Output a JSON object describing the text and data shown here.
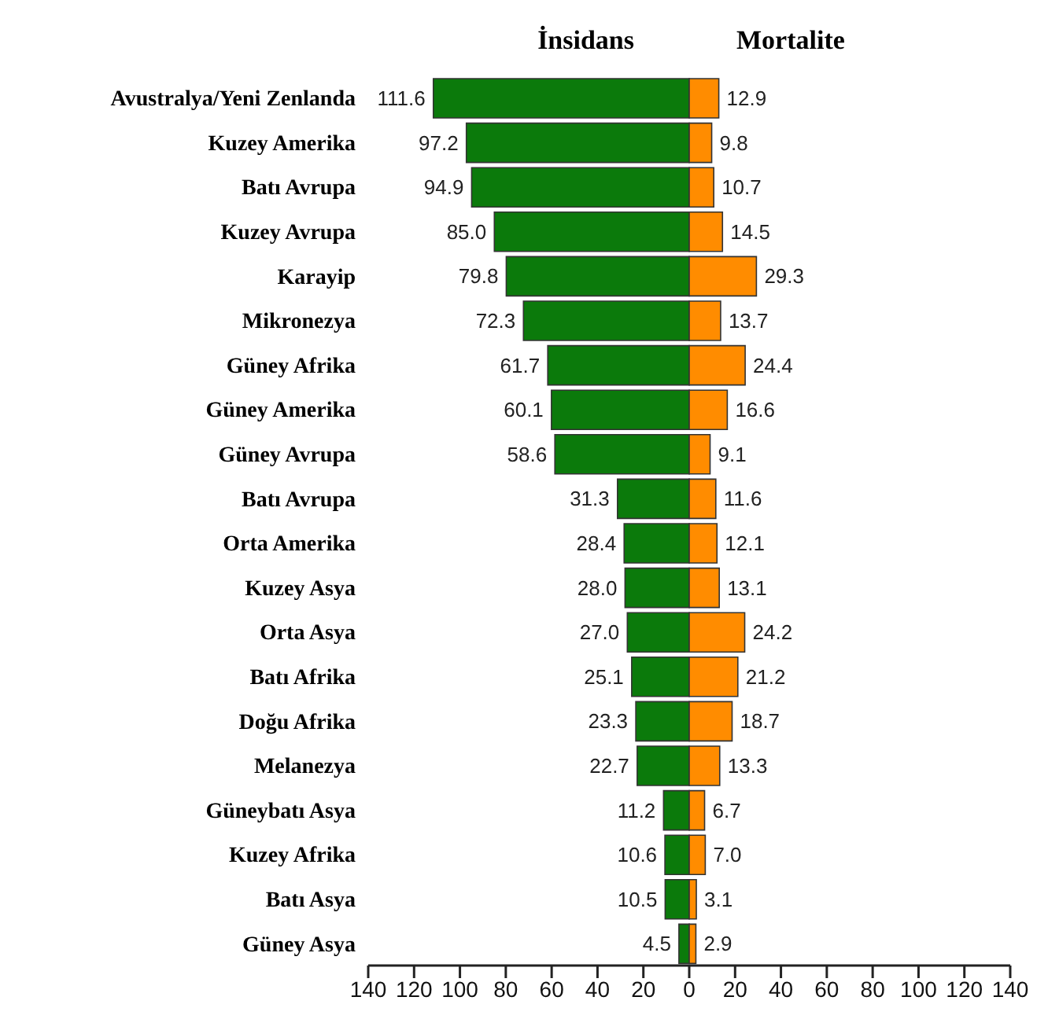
{
  "chart_data": {
    "type": "bar",
    "orientation": "horizontal",
    "stacked": true,
    "categories": [
      "Avustralya/Yeni Zenlanda",
      "Kuzey Amerika",
      "Batı Avrupa",
      "Kuzey Avrupa",
      "Karayip",
      "Mikronezya",
      "Güney Afrika",
      "Güney Amerika",
      "Güney Avrupa",
      "Batı Avrupa",
      "Orta Amerika",
      "Kuzey Asya",
      "Orta Asya",
      "Batı Afrika",
      "Doğu Afrika",
      "Melanezya",
      "Güneybatı Asya",
      "Kuzey Afrika",
      "Batı Asya",
      "Güney Asya"
    ],
    "series": [
      {
        "name": "İnsidans",
        "color": "#0b7a0b",
        "values": [
          111.6,
          97.2,
          94.9,
          85.0,
          79.8,
          72.3,
          61.7,
          60.1,
          58.6,
          31.3,
          28.4,
          28.0,
          27.0,
          25.1,
          23.3,
          22.7,
          11.2,
          10.6,
          10.5,
          4.5
        ],
        "base": [
          -111.6,
          -97.2,
          -94.9,
          -85.0,
          -79.8,
          -72.3,
          -61.7,
          -60.1,
          -58.6,
          -31.3,
          -28.4,
          -28.0,
          -27.0,
          -25.1,
          -23.3,
          -22.7,
          -11.2,
          -10.6,
          -10.5,
          -4.5
        ],
        "value_labels": [
          "111.6",
          "97.2",
          "94.9",
          "85.0",
          "79.8",
          "72.3",
          "61.7",
          "60.1",
          "58.6",
          "31.3",
          "28.4",
          "28.0",
          "27.0",
          "25.1",
          "23.3",
          "22.7",
          "11.2",
          "10.6",
          "10.5",
          "4.5"
        ]
      },
      {
        "name": "Mortalite",
        "color": "#ff8c00",
        "values": [
          12.9,
          9.8,
          10.7,
          14.5,
          29.3,
          13.7,
          24.4,
          16.6,
          9.1,
          11.6,
          12.1,
          13.1,
          24.2,
          21.2,
          18.7,
          13.3,
          6.7,
          7.0,
          3.1,
          2.9
        ],
        "value_labels": [
          "12.9",
          "9.8",
          "10.7",
          "14.5",
          "29.3",
          "13.7",
          "24.4",
          "16.6",
          "9.1",
          "11.6",
          "12.1",
          "13.1",
          "24.2",
          "21.2",
          "18.7",
          "13.3",
          "6.7",
          "7.0",
          "3.1",
          "2.9"
        ]
      }
    ],
    "xlim": [
      -140,
      140
    ],
    "xticks": [
      {
        "value": -140,
        "label": "140"
      },
      {
        "value": -120,
        "label": "120"
      },
      {
        "value": -100,
        "label": "100"
      },
      {
        "value": -80,
        "label": "80"
      },
      {
        "value": -60,
        "label": "60"
      },
      {
        "value": -40,
        "label": "40"
      },
      {
        "value": -20,
        "label": "20"
      },
      0,
      20,
      40,
      60,
      80,
      100,
      120,
      140
    ],
    "grid": false,
    "legend": false
  }
}
